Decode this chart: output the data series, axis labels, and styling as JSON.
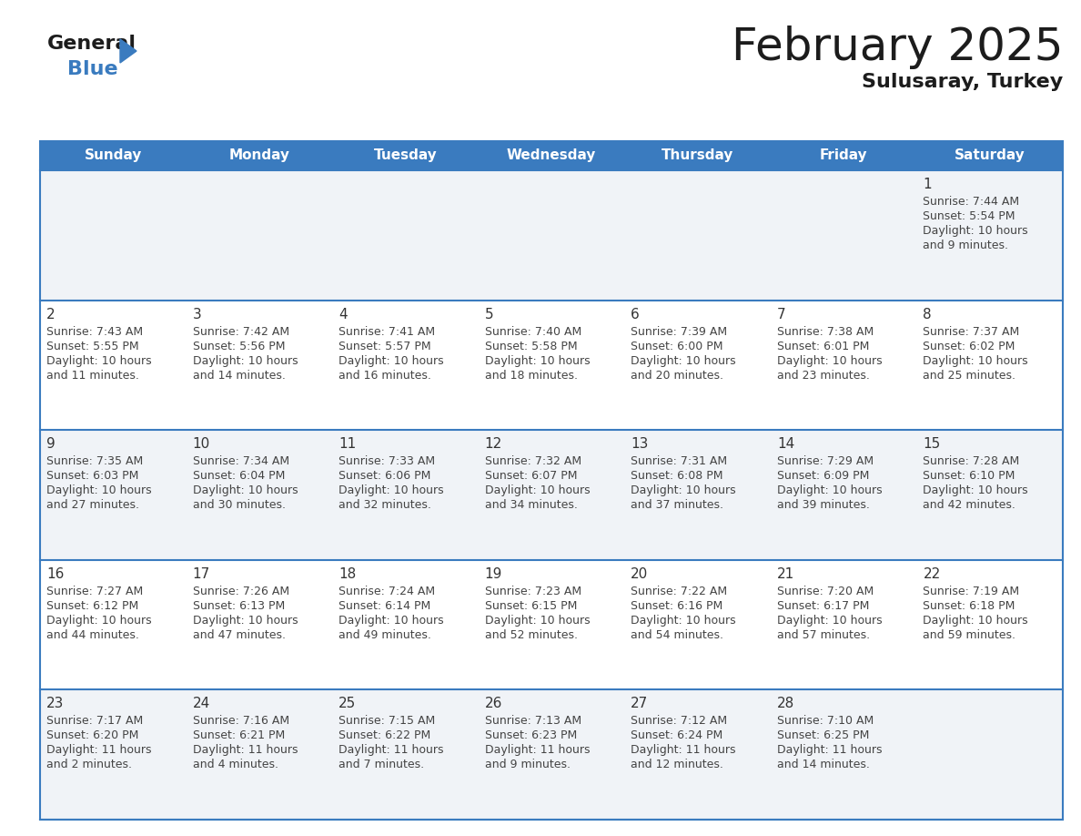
{
  "title": "February 2025",
  "subtitle": "Sulusaray, Turkey",
  "header_color": "#3a7bbf",
  "header_text_color": "#ffffff",
  "day_names": [
    "Sunday",
    "Monday",
    "Tuesday",
    "Wednesday",
    "Thursday",
    "Friday",
    "Saturday"
  ],
  "row0_bg": "#f0f3f7",
  "row1_bg": "#ffffff",
  "line_color": "#3a7bbf",
  "date_color": "#333333",
  "text_color": "#444444",
  "calendar": [
    [
      null,
      null,
      null,
      null,
      null,
      null,
      1
    ],
    [
      2,
      3,
      4,
      5,
      6,
      7,
      8
    ],
    [
      9,
      10,
      11,
      12,
      13,
      14,
      15
    ],
    [
      16,
      17,
      18,
      19,
      20,
      21,
      22
    ],
    [
      23,
      24,
      25,
      26,
      27,
      28,
      null
    ]
  ],
  "cell_data": {
    "1": {
      "sunrise": "7:44 AM",
      "sunset": "5:54 PM",
      "daylight": "10 hours and 9 minutes"
    },
    "2": {
      "sunrise": "7:43 AM",
      "sunset": "5:55 PM",
      "daylight": "10 hours and 11 minutes"
    },
    "3": {
      "sunrise": "7:42 AM",
      "sunset": "5:56 PM",
      "daylight": "10 hours and 14 minutes"
    },
    "4": {
      "sunrise": "7:41 AM",
      "sunset": "5:57 PM",
      "daylight": "10 hours and 16 minutes"
    },
    "5": {
      "sunrise": "7:40 AM",
      "sunset": "5:58 PM",
      "daylight": "10 hours and 18 minutes"
    },
    "6": {
      "sunrise": "7:39 AM",
      "sunset": "6:00 PM",
      "daylight": "10 hours and 20 minutes"
    },
    "7": {
      "sunrise": "7:38 AM",
      "sunset": "6:01 PM",
      "daylight": "10 hours and 23 minutes"
    },
    "8": {
      "sunrise": "7:37 AM",
      "sunset": "6:02 PM",
      "daylight": "10 hours and 25 minutes"
    },
    "9": {
      "sunrise": "7:35 AM",
      "sunset": "6:03 PM",
      "daylight": "10 hours and 27 minutes"
    },
    "10": {
      "sunrise": "7:34 AM",
      "sunset": "6:04 PM",
      "daylight": "10 hours and 30 minutes"
    },
    "11": {
      "sunrise": "7:33 AM",
      "sunset": "6:06 PM",
      "daylight": "10 hours and 32 minutes"
    },
    "12": {
      "sunrise": "7:32 AM",
      "sunset": "6:07 PM",
      "daylight": "10 hours and 34 minutes"
    },
    "13": {
      "sunrise": "7:31 AM",
      "sunset": "6:08 PM",
      "daylight": "10 hours and 37 minutes"
    },
    "14": {
      "sunrise": "7:29 AM",
      "sunset": "6:09 PM",
      "daylight": "10 hours and 39 minutes"
    },
    "15": {
      "sunrise": "7:28 AM",
      "sunset": "6:10 PM",
      "daylight": "10 hours and 42 minutes"
    },
    "16": {
      "sunrise": "7:27 AM",
      "sunset": "6:12 PM",
      "daylight": "10 hours and 44 minutes"
    },
    "17": {
      "sunrise": "7:26 AM",
      "sunset": "6:13 PM",
      "daylight": "10 hours and 47 minutes"
    },
    "18": {
      "sunrise": "7:24 AM",
      "sunset": "6:14 PM",
      "daylight": "10 hours and 49 minutes"
    },
    "19": {
      "sunrise": "7:23 AM",
      "sunset": "6:15 PM",
      "daylight": "10 hours and 52 minutes"
    },
    "20": {
      "sunrise": "7:22 AM",
      "sunset": "6:16 PM",
      "daylight": "10 hours and 54 minutes"
    },
    "21": {
      "sunrise": "7:20 AM",
      "sunset": "6:17 PM",
      "daylight": "10 hours and 57 minutes"
    },
    "22": {
      "sunrise": "7:19 AM",
      "sunset": "6:18 PM",
      "daylight": "10 hours and 59 minutes"
    },
    "23": {
      "sunrise": "7:17 AM",
      "sunset": "6:20 PM",
      "daylight": "11 hours and 2 minutes"
    },
    "24": {
      "sunrise": "7:16 AM",
      "sunset": "6:21 PM",
      "daylight": "11 hours and 4 minutes"
    },
    "25": {
      "sunrise": "7:15 AM",
      "sunset": "6:22 PM",
      "daylight": "11 hours and 7 minutes"
    },
    "26": {
      "sunrise": "7:13 AM",
      "sunset": "6:23 PM",
      "daylight": "11 hours and 9 minutes"
    },
    "27": {
      "sunrise": "7:12 AM",
      "sunset": "6:24 PM",
      "daylight": "11 hours and 12 minutes"
    },
    "28": {
      "sunrise": "7:10 AM",
      "sunset": "6:25 PM",
      "daylight": "11 hours and 14 minutes"
    }
  }
}
